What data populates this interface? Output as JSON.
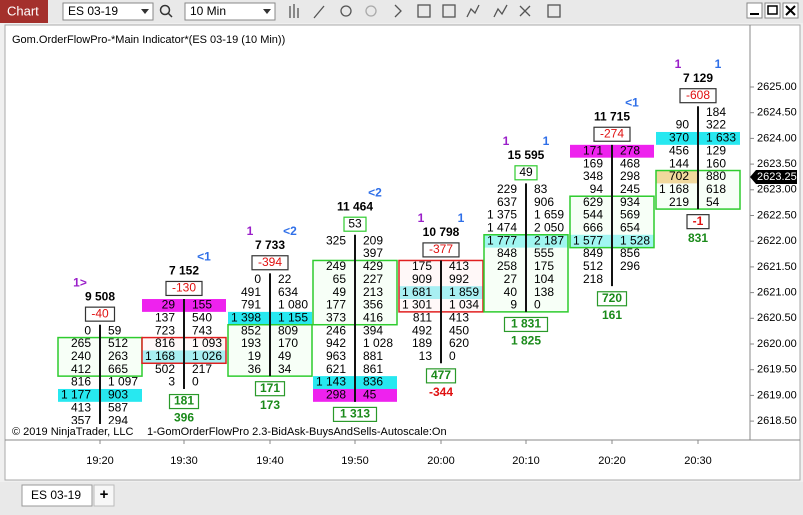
{
  "toolbar": {
    "title": "Chart",
    "instrument": "ES 03-19",
    "interval": "10 Min"
  },
  "chart": {
    "indicator_label": "Gom.OrderFlowPro-*Main Indicator*(ES 03-19 (10 Min))",
    "copyright": "© 2019 NinjaTrader, LLC",
    "indicator_footer": "1-GomOrderFlowPro 2.3-BidAsk-BuysAndSells-Autoscale:On",
    "price_axis": [
      "2625.00",
      "2624.50",
      "2624.00",
      "2623.50",
      "2623.00",
      "2622.50",
      "2622.00",
      "2621.50",
      "2621.00",
      "2620.50",
      "2620.00",
      "2619.50",
      "2619.00",
      "2618.50"
    ],
    "current_price": "2623.25",
    "time_axis": [
      "19:20",
      "19:30",
      "19:40",
      "19:50",
      "20:00",
      "20:10",
      "20:20",
      "20:30"
    ],
    "bars": [
      {
        "marker_left": "1>",
        "total": "9 508",
        "delta": "-40",
        "rows": [
          [
            "0",
            "59"
          ],
          [
            "265",
            "512"
          ],
          [
            "240",
            "263"
          ],
          [
            "412",
            "665"
          ],
          [
            "816",
            "1 097"
          ],
          [
            "1 177",
            "903"
          ],
          [
            "413",
            "587"
          ],
          [
            "357",
            "294"
          ]
        ]
      },
      {
        "marker_right": "<1",
        "total": "7 152",
        "delta": "-130",
        "rows": [
          [
            "29",
            "155"
          ],
          [
            "137",
            "540"
          ],
          [
            "723",
            "743"
          ],
          [
            "816",
            "1 093"
          ],
          [
            "1 168",
            "1 026"
          ],
          [
            "502",
            "217"
          ],
          [
            "3",
            "0"
          ]
        ],
        "footer_box": "181",
        "footer_value": "396"
      },
      {
        "marker_left": "1",
        "marker_right": "<2",
        "total": "7 733",
        "delta": "-394",
        "rows": [
          [
            "0",
            "22"
          ],
          [
            "491",
            "634"
          ],
          [
            "791",
            "1 080"
          ],
          [
            "1 398",
            "1 155"
          ],
          [
            "852",
            "809"
          ],
          [
            "193",
            "170"
          ],
          [
            "19",
            "49"
          ],
          [
            "36",
            "34"
          ]
        ],
        "footer_box": "171",
        "footer_value": "173"
      },
      {
        "marker_right": "<2",
        "total": "11 464",
        "delta": "53",
        "rows": [
          [
            "325",
            "209"
          ],
          [
            null,
            "397"
          ],
          [
            "249",
            "429"
          ],
          [
            "65",
            "227"
          ],
          [
            "49",
            "213"
          ],
          [
            "177",
            "356"
          ],
          [
            "373",
            "416"
          ],
          [
            "246",
            "394"
          ],
          [
            "942",
            "1 028"
          ],
          [
            "963",
            "881"
          ],
          [
            "621",
            "861"
          ],
          [
            "1 143",
            "836"
          ],
          [
            "298",
            "45"
          ]
        ],
        "footer_box": "1 313"
      },
      {
        "marker_left": "1",
        "marker_right": "1",
        "total": "10 798",
        "delta": "-377",
        "rows": [
          [
            "175",
            "413"
          ],
          [
            "909",
            "992"
          ],
          [
            "1 681",
            "1 859"
          ],
          [
            "1 301",
            "1 034"
          ],
          [
            "811",
            "413"
          ],
          [
            "492",
            "450"
          ],
          [
            "189",
            "620"
          ],
          [
            "13",
            "0"
          ]
        ],
        "footer_box": "477",
        "footer_value": "-344"
      },
      {
        "marker_left": "1",
        "marker_right": "1",
        "total": "15 595",
        "delta": "49",
        "rows": [
          [
            "229",
            "83"
          ],
          [
            "637",
            "906"
          ],
          [
            "1 375",
            "1 659"
          ],
          [
            "1 474",
            "2 050"
          ],
          [
            "1 777",
            "2 187"
          ],
          [
            "848",
            "555"
          ],
          [
            "258",
            "175"
          ],
          [
            "27",
            "104"
          ],
          [
            "40",
            "138"
          ],
          [
            "9",
            "0"
          ]
        ],
        "footer_box": "1 831",
        "footer_value": "1 825"
      },
      {
        "marker_right": "<1",
        "total": "11 715",
        "delta": "-274",
        "rows": [
          [
            "171",
            "278"
          ],
          [
            "169",
            "468"
          ],
          [
            "348",
            "298"
          ],
          [
            "94",
            "245"
          ],
          [
            "629",
            "934"
          ],
          [
            "544",
            "569"
          ],
          [
            "666",
            "654"
          ],
          [
            "1 577",
            "1 528"
          ],
          [
            "849",
            "856"
          ],
          [
            "512",
            "296"
          ],
          [
            "218",
            null
          ]
        ],
        "footer_box": "720",
        "footer_value": "161"
      },
      {
        "marker_left": "1",
        "marker_right": "1",
        "total": "7 129",
        "delta": "-608",
        "rows": [
          [
            null,
            "184"
          ],
          [
            "90",
            "322"
          ],
          [
            "370",
            "1 633"
          ],
          [
            "456",
            "129"
          ],
          [
            "144",
            "160"
          ],
          [
            "702",
            "880"
          ],
          [
            "1 168",
            "618"
          ],
          [
            "219",
            "54"
          ]
        ],
        "footer_box": "-1",
        "footer_value": "831"
      }
    ]
  },
  "tabs": {
    "active": "ES 03-19",
    "add": "+"
  }
}
